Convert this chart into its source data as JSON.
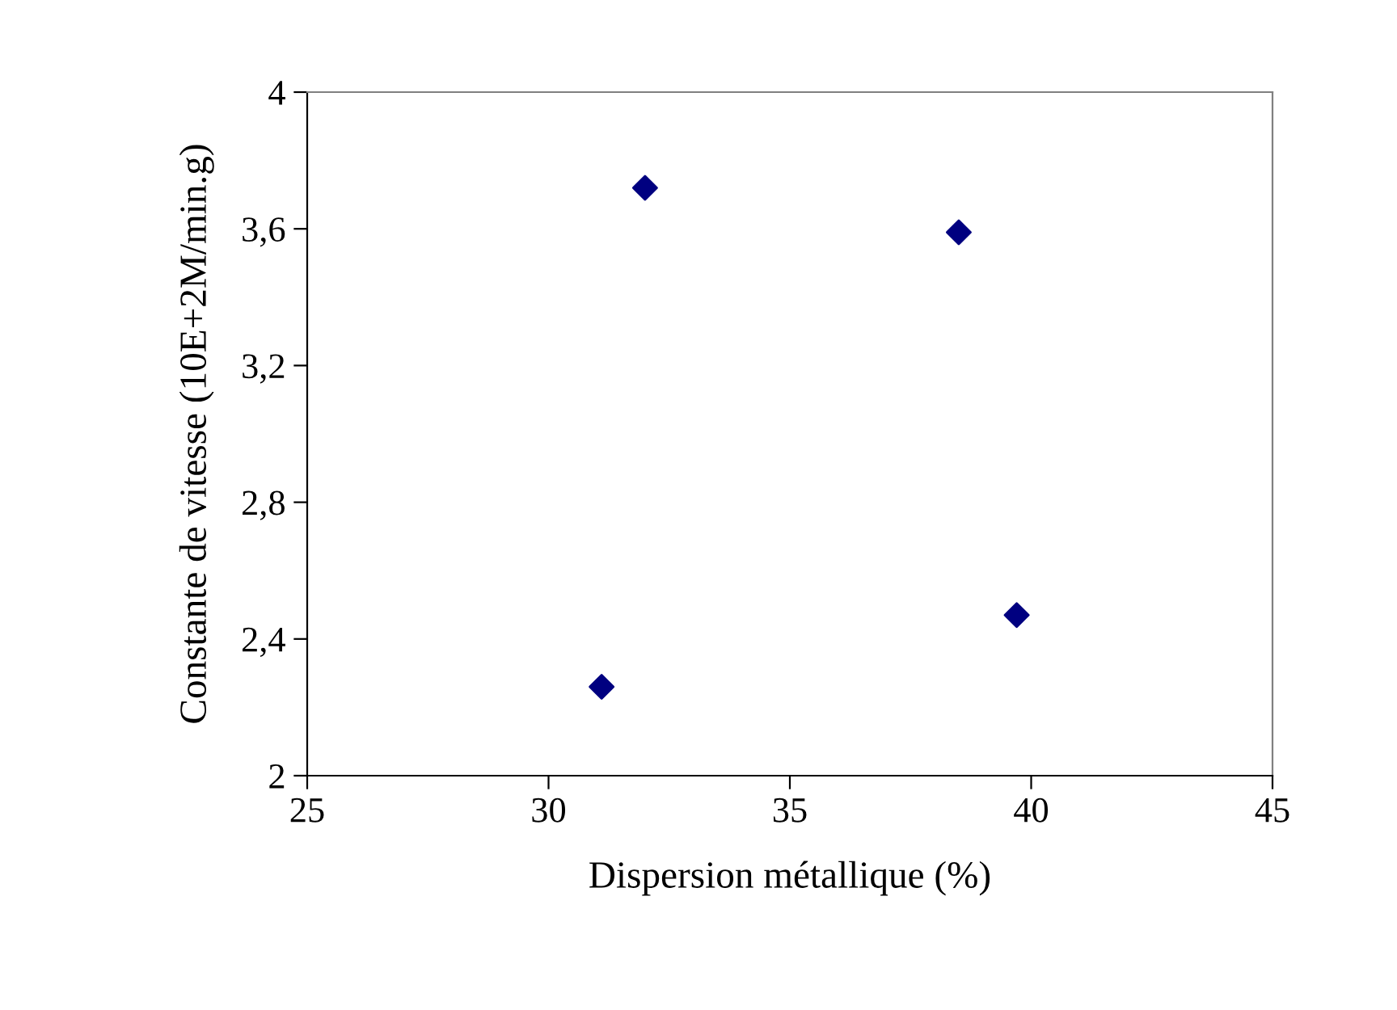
{
  "chart_data": {
    "type": "scatter",
    "xlabel": "Dispersion métallique (%)",
    "ylabel": "Constante de vitesse (10E+2M/min.g)",
    "x": [
      31.1,
      32.0,
      38.5,
      39.7
    ],
    "series": [
      {
        "color": "#000080",
        "values": [
          2.26,
          3.72,
          3.59,
          2.47
        ]
      }
    ],
    "marker": "diamond",
    "grid": false,
    "legend": false,
    "xlim": [
      25,
      45
    ],
    "xticks": [
      25,
      30,
      35,
      40,
      45
    ],
    "ylim": [
      2,
      4
    ],
    "yticks": [
      2,
      {
        "value": 2.4,
        "label": "2,4"
      },
      {
        "value": 2.8,
        "label": "2,8"
      },
      {
        "value": 3.2,
        "label": "3,2"
      },
      {
        "value": 3.6,
        "label": "3,6"
      },
      4
    ]
  }
}
